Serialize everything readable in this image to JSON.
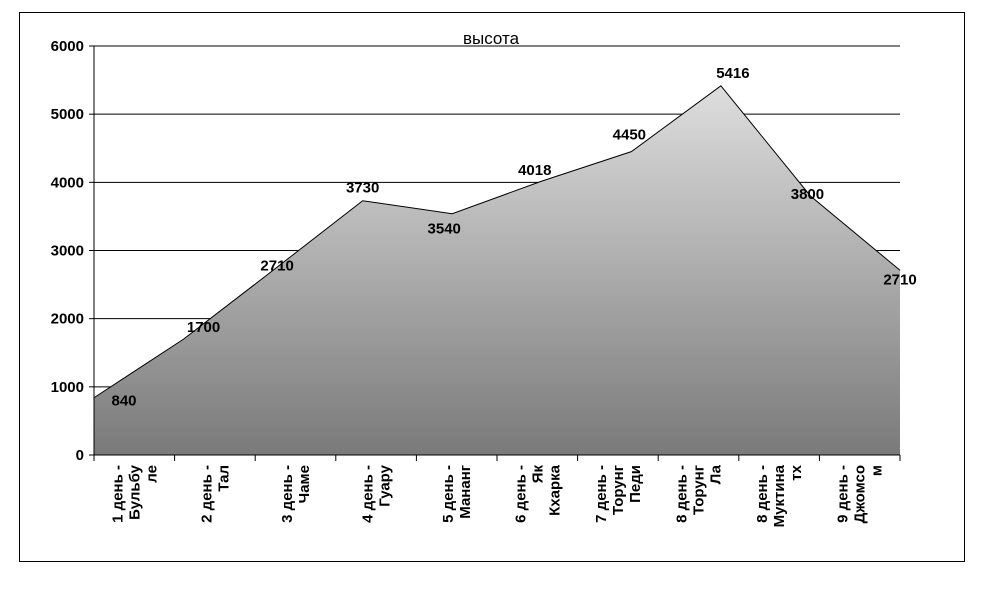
{
  "chart_data": {
    "type": "area",
    "title": "высота",
    "categories": [
      [
        "1 день -",
        "Бульбу",
        "ле"
      ],
      [
        "2 день -",
        "Тал"
      ],
      [
        "3 день -",
        "Чаме"
      ],
      [
        "4 день -",
        "Гуару"
      ],
      [
        "5 день -",
        "Мананг"
      ],
      [
        "6 день -",
        "Як",
        "Кхарка"
      ],
      [
        "7 день -",
        "Торунг",
        "Педи"
      ],
      [
        "8 день -",
        "Торунг",
        "Ла"
      ],
      [
        "8 день -",
        "Муктина",
        "тх"
      ],
      [
        "9 день -",
        "Джомсо",
        "м"
      ]
    ],
    "values": [
      840,
      1700,
      2710,
      3730,
      3540,
      4018,
      4450,
      5416,
      3800,
      2710
    ],
    "ylim": [
      0,
      6000
    ],
    "yticks": [
      0,
      1000,
      2000,
      3000,
      4000,
      5000,
      6000
    ],
    "grid": true,
    "legend": "none",
    "colors": {
      "fill_top": "#dedede",
      "fill_bottom": "#7a7a7a",
      "line": "#000000",
      "grid": "#000000"
    }
  }
}
